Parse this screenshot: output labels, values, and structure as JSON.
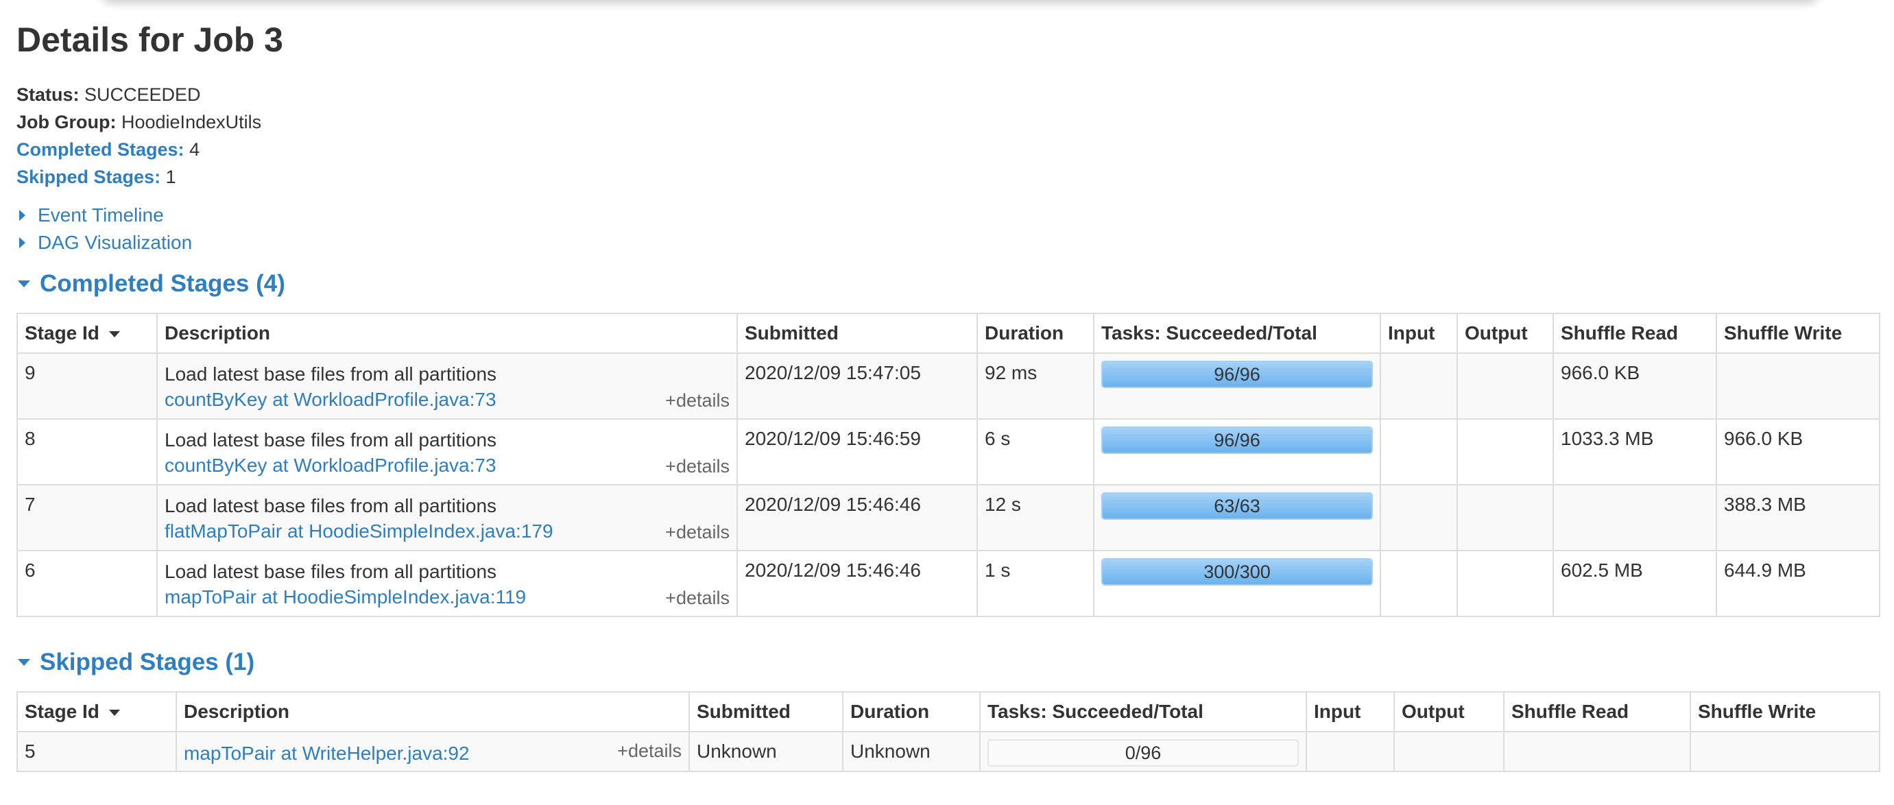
{
  "title": "Details for Job 3",
  "summary": {
    "status_label": "Status:",
    "status_value": "SUCCEEDED",
    "job_group_label": "Job Group:",
    "job_group_value": "HoodieIndexUtils",
    "completed_label": "Completed Stages:",
    "completed_value": "4",
    "skipped_label": "Skipped Stages:",
    "skipped_value": "1"
  },
  "toggles": {
    "event_timeline": "Event Timeline",
    "dag_visualization": "DAG Visualization"
  },
  "icons": {
    "collapsed": "caret-right-icon",
    "expanded": "caret-down-icon",
    "sort": "sort-desc-icon"
  },
  "colors": {
    "link": "#2e7ec2",
    "progress_fill": "#6ab3ee"
  },
  "completed_section": {
    "heading": "Completed Stages (4)",
    "headers": [
      "Stage Id",
      "Description",
      "Submitted",
      "Duration",
      "Tasks: Succeeded/Total",
      "Input",
      "Output",
      "Shuffle Read",
      "Shuffle Write"
    ],
    "rows": [
      {
        "id": "9",
        "desc": "Load latest base files from all partitions",
        "link": "countByKey at WorkloadProfile.java:73",
        "details": "+details",
        "submitted": "2020/12/09 15:47:05",
        "duration": "92 ms",
        "succeeded": 96,
        "total": 96,
        "tasks": "96/96",
        "input": "",
        "output": "",
        "shuffle_read": "966.0 KB",
        "shuffle_write": ""
      },
      {
        "id": "8",
        "desc": "Load latest base files from all partitions",
        "link": "countByKey at WorkloadProfile.java:73",
        "details": "+details",
        "submitted": "2020/12/09 15:46:59",
        "duration": "6 s",
        "succeeded": 96,
        "total": 96,
        "tasks": "96/96",
        "input": "",
        "output": "",
        "shuffle_read": "1033.3 MB",
        "shuffle_write": "966.0 KB"
      },
      {
        "id": "7",
        "desc": "Load latest base files from all partitions",
        "link": "flatMapToPair at HoodieSimpleIndex.java:179",
        "details": "+details",
        "submitted": "2020/12/09 15:46:46",
        "duration": "12 s",
        "succeeded": 63,
        "total": 63,
        "tasks": "63/63",
        "input": "",
        "output": "",
        "shuffle_read": "",
        "shuffle_write": "388.3 MB"
      },
      {
        "id": "6",
        "desc": "Load latest base files from all partitions",
        "link": "mapToPair at HoodieSimpleIndex.java:119",
        "details": "+details",
        "submitted": "2020/12/09 15:46:46",
        "duration": "1 s",
        "succeeded": 300,
        "total": 300,
        "tasks": "300/300",
        "input": "",
        "output": "",
        "shuffle_read": "602.5 MB",
        "shuffle_write": "644.9 MB"
      }
    ]
  },
  "skipped_section": {
    "heading": "Skipped Stages (1)",
    "headers": [
      "Stage Id",
      "Description",
      "Submitted",
      "Duration",
      "Tasks: Succeeded/Total",
      "Input",
      "Output",
      "Shuffle Read",
      "Shuffle Write"
    ],
    "rows": [
      {
        "id": "5",
        "desc": "",
        "link": "mapToPair at WriteHelper.java:92",
        "details": "+details",
        "submitted": "Unknown",
        "duration": "Unknown",
        "succeeded": 0,
        "total": 96,
        "tasks": "0/96",
        "input": "",
        "output": "",
        "shuffle_read": "",
        "shuffle_write": ""
      }
    ]
  }
}
